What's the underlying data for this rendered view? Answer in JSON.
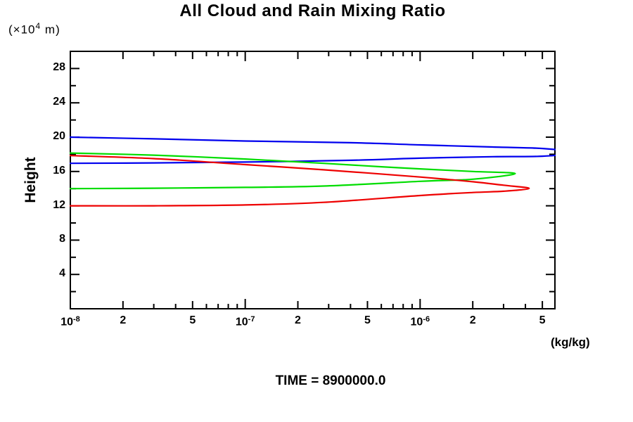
{
  "title": "All Cloud and Rain Mixing Ratio",
  "y_axis_unit": {
    "pre": "(×10",
    "sup": "4",
    "post": " m)"
  },
  "y_axis_label": "Height",
  "x_axis_unit": "(kg/kg)",
  "time_label": "TIME = 8900000.0",
  "colors": {
    "frame": "#000000",
    "background": "#ffffff",
    "series_blue": "#0000ee",
    "series_green": "#00dd00",
    "series_red": "#ee0000"
  },
  "chart_data": {
    "type": "line",
    "title": "All Cloud and Rain Mixing Ratio",
    "xlabel": "(kg/kg)",
    "ylabel": "Height (×10^4 m)",
    "x_scale": "log",
    "xlim": [
      1e-08,
      5.9e-06
    ],
    "ylim": [
      0,
      30
    ],
    "grid": false,
    "legend": "none",
    "annotations": [
      "TIME = 8900000.0"
    ],
    "x_ticks": {
      "labeled": [
        {
          "value": 1e-08,
          "base": "10",
          "sup": "-8"
        },
        {
          "value": 2e-08,
          "base": "2",
          "sup": ""
        },
        {
          "value": 5e-08,
          "base": "5",
          "sup": ""
        },
        {
          "value": 1e-07,
          "base": "10",
          "sup": "-7"
        },
        {
          "value": 2e-07,
          "base": "2",
          "sup": ""
        },
        {
          "value": 5e-07,
          "base": "5",
          "sup": ""
        },
        {
          "value": 1e-06,
          "base": "10",
          "sup": "-6"
        },
        {
          "value": 2e-06,
          "base": "2",
          "sup": ""
        },
        {
          "value": 5e-06,
          "base": "5",
          "sup": ""
        }
      ],
      "decade_exponents": [
        -8,
        -7,
        -6
      ],
      "minor_multiples": [
        3,
        4,
        6,
        7,
        8,
        9
      ]
    },
    "y_ticks": {
      "labeled": [
        4,
        8,
        12,
        16,
        20,
        24,
        28
      ],
      "minor_step": 2
    },
    "series": [
      {
        "name": "blue-profile",
        "color": "#0000ee",
        "points": [
          [
            1e-08,
            20.0
          ],
          [
            3e-08,
            19.8
          ],
          [
            1e-07,
            19.55
          ],
          [
            4e-07,
            19.35
          ],
          [
            1e-06,
            19.1
          ],
          [
            2.6e-06,
            18.85
          ],
          [
            5e-06,
            18.68
          ],
          [
            7.5e-06,
            18.2
          ],
          [
            5e-06,
            17.78
          ],
          [
            2.6e-06,
            17.72
          ],
          [
            1e-06,
            17.55
          ],
          [
            4e-07,
            17.3
          ],
          [
            1e-07,
            17.1
          ],
          [
            3e-08,
            17.0
          ],
          [
            1e-08,
            16.95
          ]
        ]
      },
      {
        "name": "green-profile",
        "color": "#00dd00",
        "points": [
          [
            1e-08,
            18.15
          ],
          [
            3e-08,
            17.9
          ],
          [
            1e-07,
            17.45
          ],
          [
            2.8e-07,
            16.95
          ],
          [
            6e-07,
            16.55
          ],
          [
            1e-06,
            16.3
          ],
          [
            2e-06,
            16.0
          ],
          [
            3.5e-06,
            15.75
          ],
          [
            2e-06,
            15.1
          ],
          [
            1e-06,
            14.85
          ],
          [
            2.8e-07,
            14.3
          ],
          [
            1e-07,
            14.15
          ],
          [
            3e-08,
            14.05
          ],
          [
            1e-08,
            14.0
          ]
        ]
      },
      {
        "name": "red-profile",
        "color": "#ee0000",
        "points": [
          [
            1e-08,
            17.85
          ],
          [
            3e-08,
            17.5
          ],
          [
            1e-07,
            16.8
          ],
          [
            2.8e-07,
            16.2
          ],
          [
            1e-06,
            15.35
          ],
          [
            2e-06,
            14.8
          ],
          [
            3e-06,
            14.4
          ],
          [
            4.2e-06,
            14.03
          ],
          [
            3e-06,
            13.7
          ],
          [
            2e-06,
            13.55
          ],
          [
            1e-06,
            13.2
          ],
          [
            2.8e-07,
            12.4
          ],
          [
            1e-07,
            12.1
          ],
          [
            3e-08,
            12.0
          ],
          [
            1e-08,
            12.0
          ]
        ]
      }
    ]
  }
}
